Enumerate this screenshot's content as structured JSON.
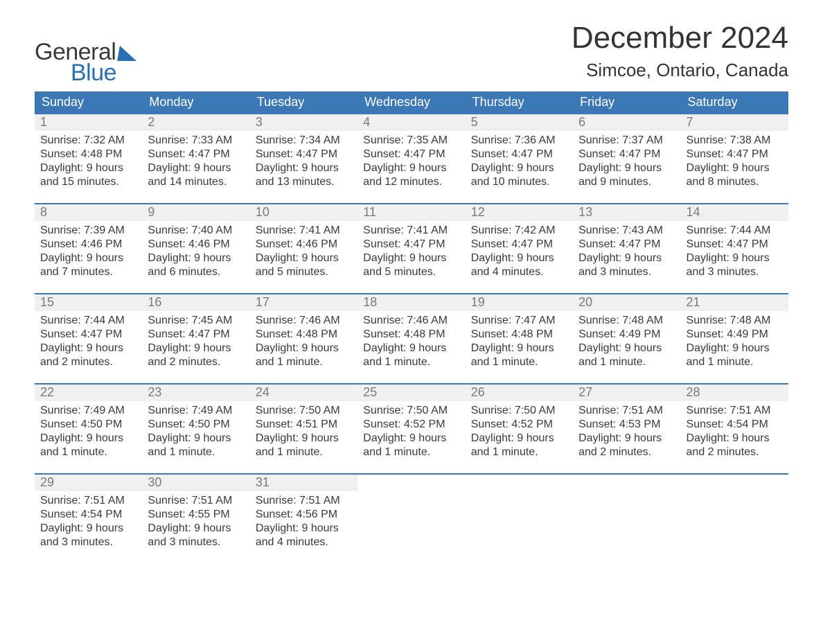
{
  "logo": {
    "word1": "General",
    "word2": "Blue"
  },
  "title": "December 2024",
  "location": "Simcoe, Ontario, Canada",
  "colors": {
    "header_bg": "#3b78b5",
    "row_border": "#3b78b5",
    "daynum_bg": "#f0f0f0",
    "daynum_color": "#7a7a7a",
    "text_color": "#3a3a3a",
    "page_bg": "#ffffff",
    "logo_blue": "#2a6fb3"
  },
  "day_headers": [
    "Sunday",
    "Monday",
    "Tuesday",
    "Wednesday",
    "Thursday",
    "Friday",
    "Saturday"
  ],
  "weeks": [
    [
      {
        "n": "1",
        "sunrise": "Sunrise: 7:32 AM",
        "sunset": "Sunset: 4:48 PM",
        "day1": "Daylight: 9 hours",
        "day2": "and 15 minutes."
      },
      {
        "n": "2",
        "sunrise": "Sunrise: 7:33 AM",
        "sunset": "Sunset: 4:47 PM",
        "day1": "Daylight: 9 hours",
        "day2": "and 14 minutes."
      },
      {
        "n": "3",
        "sunrise": "Sunrise: 7:34 AM",
        "sunset": "Sunset: 4:47 PM",
        "day1": "Daylight: 9 hours",
        "day2": "and 13 minutes."
      },
      {
        "n": "4",
        "sunrise": "Sunrise: 7:35 AM",
        "sunset": "Sunset: 4:47 PM",
        "day1": "Daylight: 9 hours",
        "day2": "and 12 minutes."
      },
      {
        "n": "5",
        "sunrise": "Sunrise: 7:36 AM",
        "sunset": "Sunset: 4:47 PM",
        "day1": "Daylight: 9 hours",
        "day2": "and 10 minutes."
      },
      {
        "n": "6",
        "sunrise": "Sunrise: 7:37 AM",
        "sunset": "Sunset: 4:47 PM",
        "day1": "Daylight: 9 hours",
        "day2": "and 9 minutes."
      },
      {
        "n": "7",
        "sunrise": "Sunrise: 7:38 AM",
        "sunset": "Sunset: 4:47 PM",
        "day1": "Daylight: 9 hours",
        "day2": "and 8 minutes."
      }
    ],
    [
      {
        "n": "8",
        "sunrise": "Sunrise: 7:39 AM",
        "sunset": "Sunset: 4:46 PM",
        "day1": "Daylight: 9 hours",
        "day2": "and 7 minutes."
      },
      {
        "n": "9",
        "sunrise": "Sunrise: 7:40 AM",
        "sunset": "Sunset: 4:46 PM",
        "day1": "Daylight: 9 hours",
        "day2": "and 6 minutes."
      },
      {
        "n": "10",
        "sunrise": "Sunrise: 7:41 AM",
        "sunset": "Sunset: 4:46 PM",
        "day1": "Daylight: 9 hours",
        "day2": "and 5 minutes."
      },
      {
        "n": "11",
        "sunrise": "Sunrise: 7:41 AM",
        "sunset": "Sunset: 4:47 PM",
        "day1": "Daylight: 9 hours",
        "day2": "and 5 minutes."
      },
      {
        "n": "12",
        "sunrise": "Sunrise: 7:42 AM",
        "sunset": "Sunset: 4:47 PM",
        "day1": "Daylight: 9 hours",
        "day2": "and 4 minutes."
      },
      {
        "n": "13",
        "sunrise": "Sunrise: 7:43 AM",
        "sunset": "Sunset: 4:47 PM",
        "day1": "Daylight: 9 hours",
        "day2": "and 3 minutes."
      },
      {
        "n": "14",
        "sunrise": "Sunrise: 7:44 AM",
        "sunset": "Sunset: 4:47 PM",
        "day1": "Daylight: 9 hours",
        "day2": "and 3 minutes."
      }
    ],
    [
      {
        "n": "15",
        "sunrise": "Sunrise: 7:44 AM",
        "sunset": "Sunset: 4:47 PM",
        "day1": "Daylight: 9 hours",
        "day2": "and 2 minutes."
      },
      {
        "n": "16",
        "sunrise": "Sunrise: 7:45 AM",
        "sunset": "Sunset: 4:47 PM",
        "day1": "Daylight: 9 hours",
        "day2": "and 2 minutes."
      },
      {
        "n": "17",
        "sunrise": "Sunrise: 7:46 AM",
        "sunset": "Sunset: 4:48 PM",
        "day1": "Daylight: 9 hours",
        "day2": "and 1 minute."
      },
      {
        "n": "18",
        "sunrise": "Sunrise: 7:46 AM",
        "sunset": "Sunset: 4:48 PM",
        "day1": "Daylight: 9 hours",
        "day2": "and 1 minute."
      },
      {
        "n": "19",
        "sunrise": "Sunrise: 7:47 AM",
        "sunset": "Sunset: 4:48 PM",
        "day1": "Daylight: 9 hours",
        "day2": "and 1 minute."
      },
      {
        "n": "20",
        "sunrise": "Sunrise: 7:48 AM",
        "sunset": "Sunset: 4:49 PM",
        "day1": "Daylight: 9 hours",
        "day2": "and 1 minute."
      },
      {
        "n": "21",
        "sunrise": "Sunrise: 7:48 AM",
        "sunset": "Sunset: 4:49 PM",
        "day1": "Daylight: 9 hours",
        "day2": "and 1 minute."
      }
    ],
    [
      {
        "n": "22",
        "sunrise": "Sunrise: 7:49 AM",
        "sunset": "Sunset: 4:50 PM",
        "day1": "Daylight: 9 hours",
        "day2": "and 1 minute."
      },
      {
        "n": "23",
        "sunrise": "Sunrise: 7:49 AM",
        "sunset": "Sunset: 4:50 PM",
        "day1": "Daylight: 9 hours",
        "day2": "and 1 minute."
      },
      {
        "n": "24",
        "sunrise": "Sunrise: 7:50 AM",
        "sunset": "Sunset: 4:51 PM",
        "day1": "Daylight: 9 hours",
        "day2": "and 1 minute."
      },
      {
        "n": "25",
        "sunrise": "Sunrise: 7:50 AM",
        "sunset": "Sunset: 4:52 PM",
        "day1": "Daylight: 9 hours",
        "day2": "and 1 minute."
      },
      {
        "n": "26",
        "sunrise": "Sunrise: 7:50 AM",
        "sunset": "Sunset: 4:52 PM",
        "day1": "Daylight: 9 hours",
        "day2": "and 1 minute."
      },
      {
        "n": "27",
        "sunrise": "Sunrise: 7:51 AM",
        "sunset": "Sunset: 4:53 PM",
        "day1": "Daylight: 9 hours",
        "day2": "and 2 minutes."
      },
      {
        "n": "28",
        "sunrise": "Sunrise: 7:51 AM",
        "sunset": "Sunset: 4:54 PM",
        "day1": "Daylight: 9 hours",
        "day2": "and 2 minutes."
      }
    ],
    [
      {
        "n": "29",
        "sunrise": "Sunrise: 7:51 AM",
        "sunset": "Sunset: 4:54 PM",
        "day1": "Daylight: 9 hours",
        "day2": "and 3 minutes."
      },
      {
        "n": "30",
        "sunrise": "Sunrise: 7:51 AM",
        "sunset": "Sunset: 4:55 PM",
        "day1": "Daylight: 9 hours",
        "day2": "and 3 minutes."
      },
      {
        "n": "31",
        "sunrise": "Sunrise: 7:51 AM",
        "sunset": "Sunset: 4:56 PM",
        "day1": "Daylight: 9 hours",
        "day2": "and 4 minutes."
      },
      null,
      null,
      null,
      null
    ]
  ]
}
